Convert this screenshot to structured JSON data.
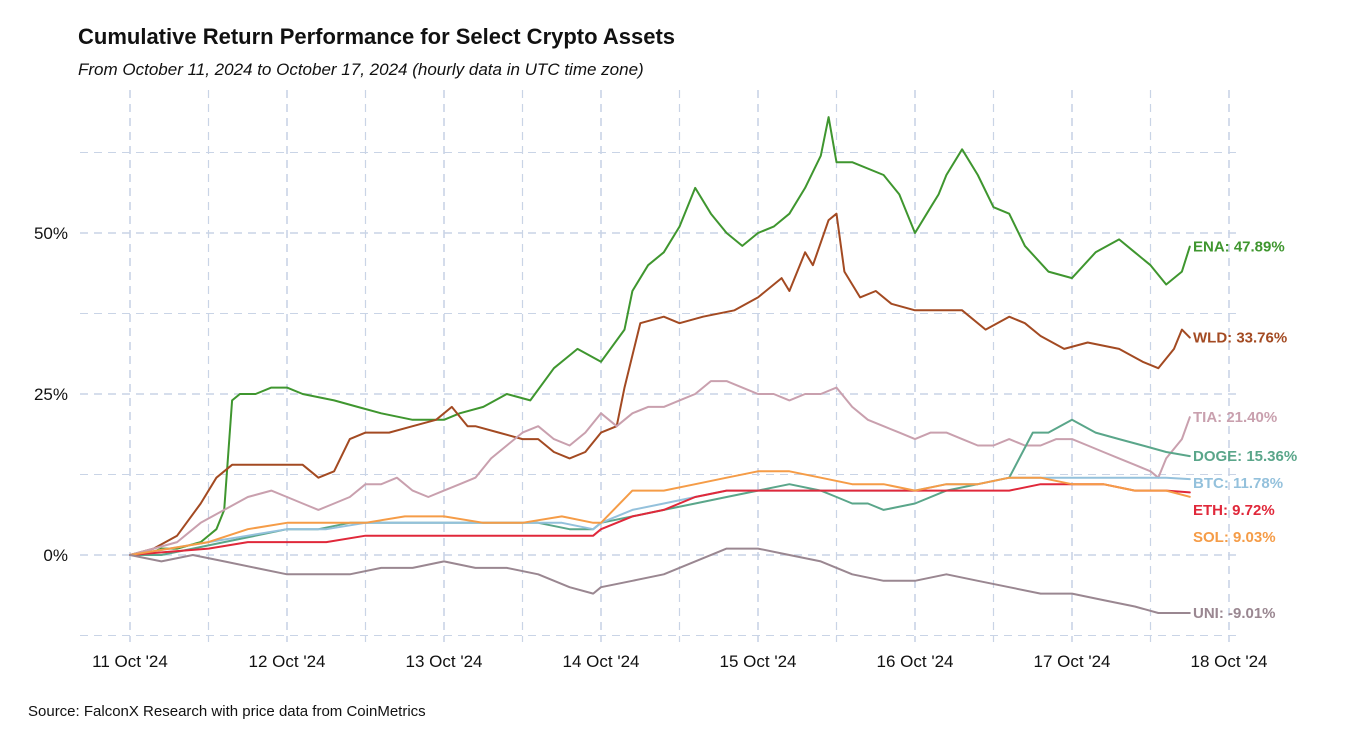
{
  "chart_data": {
    "type": "line",
    "title": "Cumulative Return Performance for Select Crypto Assets",
    "subtitle": "From October 11, 2024 to October 17, 2024 (hourly data in UTC time zone)",
    "source": "Source: FalconX Research with price data from CoinMetrics",
    "xlabel": "",
    "ylabel": "",
    "x_unit": "days since 11 Oct 2024 00:00 UTC",
    "xlim": [
      -0.27,
      7.3
    ],
    "ylim": [
      -0.14,
      0.7
    ],
    "x_ticks": [
      {
        "value": 0,
        "label": "11 Oct '24"
      },
      {
        "value": 1,
        "label": "12 Oct '24"
      },
      {
        "value": 2,
        "label": "13 Oct '24"
      },
      {
        "value": 3,
        "label": "14 Oct '24"
      },
      {
        "value": 4,
        "label": "15 Oct '24"
      },
      {
        "value": 5,
        "label": "16 Oct '24"
      },
      {
        "value": 6,
        "label": "17 Oct '24"
      },
      {
        "value": 7,
        "label": "18 Oct '24"
      }
    ],
    "y_ticks": [
      {
        "value": 0,
        "label": "0%"
      },
      {
        "value": 0.25,
        "label": "25%"
      },
      {
        "value": 0.5,
        "label": "50%"
      }
    ],
    "minor_y_gridlines": [
      -0.125,
      0.125,
      0.375,
      0.625
    ],
    "grid": true,
    "legend": "end-of-line labels",
    "series": [
      {
        "name": "ENA",
        "label": "ENA: 47.89%",
        "color": "#3f962f",
        "x": [
          0,
          0.1,
          0.2,
          0.3,
          0.45,
          0.55,
          0.6,
          0.65,
          0.7,
          0.75,
          0.8,
          0.9,
          1.0,
          1.1,
          1.3,
          1.45,
          1.6,
          1.8,
          2.0,
          2.1,
          2.25,
          2.4,
          2.55,
          2.7,
          2.8,
          2.85,
          3.0,
          3.15,
          3.2,
          3.3,
          3.4,
          3.5,
          3.6,
          3.7,
          3.8,
          3.9,
          4.0,
          4.1,
          4.2,
          4.3,
          4.4,
          4.45,
          4.5,
          4.6,
          4.8,
          4.9,
          5.0,
          5.1,
          5.15,
          5.2,
          5.3,
          5.4,
          5.5,
          5.6,
          5.7,
          5.85,
          6.0,
          6.15,
          6.3,
          6.4,
          6.5,
          6.6,
          6.7,
          6.75
        ],
        "values": [
          0,
          0.0,
          0.01,
          0.01,
          0.02,
          0.04,
          0.07,
          0.24,
          0.25,
          0.25,
          0.25,
          0.26,
          0.26,
          0.25,
          0.24,
          0.23,
          0.22,
          0.21,
          0.21,
          0.22,
          0.23,
          0.25,
          0.24,
          0.29,
          0.31,
          0.32,
          0.3,
          0.35,
          0.41,
          0.45,
          0.47,
          0.51,
          0.57,
          0.53,
          0.5,
          0.48,
          0.5,
          0.51,
          0.53,
          0.57,
          0.62,
          0.68,
          0.61,
          0.61,
          0.59,
          0.56,
          0.5,
          0.54,
          0.56,
          0.59,
          0.63,
          0.59,
          0.54,
          0.53,
          0.48,
          0.44,
          0.43,
          0.47,
          0.49,
          0.47,
          0.45,
          0.42,
          0.44,
          0.4789
        ]
      },
      {
        "name": "WLD",
        "label": "WLD: 33.76%",
        "color": "#a34a22",
        "x": [
          0,
          0.15,
          0.3,
          0.45,
          0.55,
          0.65,
          0.8,
          0.95,
          1.1,
          1.2,
          1.3,
          1.4,
          1.5,
          1.65,
          1.8,
          1.95,
          2.05,
          2.15,
          2.2,
          2.35,
          2.5,
          2.6,
          2.7,
          2.8,
          2.9,
          3.0,
          3.1,
          3.15,
          3.25,
          3.4,
          3.5,
          3.65,
          3.85,
          4.0,
          4.15,
          4.2,
          4.3,
          4.35,
          4.45,
          4.5,
          4.55,
          4.65,
          4.75,
          4.85,
          5.0,
          5.15,
          5.3,
          5.45,
          5.6,
          5.7,
          5.8,
          5.95,
          6.1,
          6.3,
          6.45,
          6.55,
          6.65,
          6.7,
          6.75
        ],
        "values": [
          0,
          0.01,
          0.03,
          0.08,
          0.12,
          0.14,
          0.14,
          0.14,
          0.14,
          0.12,
          0.13,
          0.18,
          0.19,
          0.19,
          0.2,
          0.21,
          0.23,
          0.2,
          0.2,
          0.19,
          0.18,
          0.18,
          0.16,
          0.15,
          0.16,
          0.19,
          0.2,
          0.26,
          0.36,
          0.37,
          0.36,
          0.37,
          0.38,
          0.4,
          0.43,
          0.41,
          0.47,
          0.45,
          0.52,
          0.53,
          0.44,
          0.4,
          0.41,
          0.39,
          0.38,
          0.38,
          0.38,
          0.35,
          0.37,
          0.36,
          0.34,
          0.32,
          0.33,
          0.32,
          0.3,
          0.29,
          0.32,
          0.35,
          0.3376
        ]
      },
      {
        "name": "TIA",
        "label": "TIA: 21.40%",
        "color": "#c9a0ae",
        "x": [
          0,
          0.15,
          0.3,
          0.45,
          0.6,
          0.75,
          0.9,
          1.0,
          1.1,
          1.2,
          1.3,
          1.4,
          1.5,
          1.6,
          1.7,
          1.8,
          1.9,
          2.0,
          2.1,
          2.2,
          2.3,
          2.4,
          2.5,
          2.6,
          2.7,
          2.8,
          2.9,
          3.0,
          3.1,
          3.2,
          3.3,
          3.4,
          3.5,
          3.6,
          3.7,
          3.8,
          3.9,
          4.0,
          4.1,
          4.2,
          4.3,
          4.4,
          4.5,
          4.6,
          4.7,
          4.8,
          4.9,
          5.0,
          5.1,
          5.2,
          5.3,
          5.4,
          5.5,
          5.6,
          5.7,
          5.8,
          5.9,
          6.0,
          6.1,
          6.2,
          6.3,
          6.4,
          6.5,
          6.55,
          6.6,
          6.7,
          6.75
        ],
        "values": [
          0,
          0.01,
          0.02,
          0.05,
          0.07,
          0.09,
          0.1,
          0.09,
          0.08,
          0.07,
          0.08,
          0.09,
          0.11,
          0.11,
          0.12,
          0.1,
          0.09,
          0.1,
          0.11,
          0.12,
          0.15,
          0.17,
          0.19,
          0.2,
          0.18,
          0.17,
          0.19,
          0.22,
          0.2,
          0.22,
          0.23,
          0.23,
          0.24,
          0.25,
          0.27,
          0.27,
          0.26,
          0.25,
          0.25,
          0.24,
          0.25,
          0.25,
          0.26,
          0.23,
          0.21,
          0.2,
          0.19,
          0.18,
          0.19,
          0.19,
          0.18,
          0.17,
          0.17,
          0.18,
          0.17,
          0.17,
          0.18,
          0.18,
          0.17,
          0.16,
          0.15,
          0.14,
          0.13,
          0.12,
          0.15,
          0.18,
          0.214
        ]
      },
      {
        "name": "DOGE",
        "label": "DOGE: 15.36%",
        "color": "#5aa68a",
        "x": [
          0,
          0.2,
          0.4,
          0.6,
          0.8,
          1.0,
          1.2,
          1.4,
          1.6,
          1.8,
          2.0,
          2.2,
          2.4,
          2.6,
          2.8,
          2.95,
          3.0,
          3.2,
          3.4,
          3.6,
          3.8,
          4.0,
          4.2,
          4.4,
          4.5,
          4.6,
          4.7,
          4.8,
          5.0,
          5.2,
          5.4,
          5.6,
          5.75,
          5.85,
          6.0,
          6.15,
          6.3,
          6.45,
          6.6,
          6.75
        ],
        "values": [
          0,
          0.0,
          0.01,
          0.02,
          0.03,
          0.04,
          0.04,
          0.05,
          0.05,
          0.05,
          0.05,
          0.05,
          0.05,
          0.05,
          0.04,
          0.04,
          0.05,
          0.06,
          0.07,
          0.08,
          0.09,
          0.1,
          0.11,
          0.1,
          0.09,
          0.08,
          0.08,
          0.07,
          0.08,
          0.1,
          0.11,
          0.12,
          0.19,
          0.19,
          0.21,
          0.19,
          0.18,
          0.17,
          0.16,
          0.1536
        ]
      },
      {
        "name": "BTC",
        "label": "BTC: 11.78%",
        "color": "#94c1dc",
        "x": [
          0,
          0.25,
          0.5,
          0.75,
          1.0,
          1.25,
          1.5,
          1.75,
          2.0,
          2.25,
          2.5,
          2.75,
          2.95,
          3.0,
          3.2,
          3.4,
          3.6,
          3.8,
          4.0,
          4.2,
          4.4,
          4.6,
          4.8,
          5.0,
          5.2,
          5.4,
          5.6,
          5.8,
          6.0,
          6.2,
          6.4,
          6.6,
          6.75
        ],
        "values": [
          0,
          0.01,
          0.02,
          0.03,
          0.04,
          0.04,
          0.05,
          0.05,
          0.05,
          0.05,
          0.05,
          0.05,
          0.04,
          0.05,
          0.07,
          0.08,
          0.09,
          0.1,
          0.1,
          0.1,
          0.1,
          0.1,
          0.1,
          0.1,
          0.11,
          0.11,
          0.12,
          0.12,
          0.12,
          0.12,
          0.12,
          0.12,
          0.1178
        ]
      },
      {
        "name": "ETH",
        "label": "ETH: 9.72%",
        "color": "#e0283a",
        "x": [
          0,
          0.25,
          0.5,
          0.75,
          1.0,
          1.25,
          1.5,
          1.75,
          2.0,
          2.25,
          2.5,
          2.75,
          2.95,
          3.0,
          3.2,
          3.4,
          3.6,
          3.8,
          4.0,
          4.2,
          4.4,
          4.6,
          4.8,
          5.0,
          5.2,
          5.4,
          5.6,
          5.8,
          6.0,
          6.2,
          6.4,
          6.6,
          6.75
        ],
        "values": [
          0,
          0.005,
          0.01,
          0.02,
          0.02,
          0.02,
          0.03,
          0.03,
          0.03,
          0.03,
          0.03,
          0.03,
          0.03,
          0.04,
          0.06,
          0.07,
          0.09,
          0.1,
          0.1,
          0.1,
          0.1,
          0.1,
          0.1,
          0.1,
          0.1,
          0.1,
          0.1,
          0.11,
          0.11,
          0.11,
          0.1,
          0.1,
          0.0972
        ]
      },
      {
        "name": "SOL",
        "label": "SOL: 9.03%",
        "color": "#f59c47",
        "x": [
          0,
          0.25,
          0.5,
          0.75,
          1.0,
          1.25,
          1.5,
          1.75,
          2.0,
          2.25,
          2.5,
          2.75,
          2.95,
          3.0,
          3.2,
          3.4,
          3.6,
          3.8,
          4.0,
          4.2,
          4.4,
          4.6,
          4.8,
          5.0,
          5.2,
          5.4,
          5.6,
          5.8,
          6.0,
          6.2,
          6.4,
          6.6,
          6.75
        ],
        "values": [
          0,
          0.01,
          0.02,
          0.04,
          0.05,
          0.05,
          0.05,
          0.06,
          0.06,
          0.05,
          0.05,
          0.06,
          0.05,
          0.05,
          0.1,
          0.1,
          0.11,
          0.12,
          0.13,
          0.13,
          0.12,
          0.11,
          0.11,
          0.1,
          0.11,
          0.11,
          0.12,
          0.12,
          0.11,
          0.11,
          0.1,
          0.1,
          0.0903
        ]
      },
      {
        "name": "UNI",
        "label": "UNI: -9.01%",
        "color": "#9a8791",
        "x": [
          0,
          0.2,
          0.4,
          0.6,
          0.8,
          1.0,
          1.2,
          1.4,
          1.6,
          1.8,
          2.0,
          2.2,
          2.4,
          2.6,
          2.8,
          2.95,
          3.0,
          3.2,
          3.4,
          3.6,
          3.8,
          4.0,
          4.2,
          4.4,
          4.6,
          4.8,
          5.0,
          5.2,
          5.4,
          5.6,
          5.8,
          6.0,
          6.2,
          6.4,
          6.55,
          6.65,
          6.75
        ],
        "values": [
          0,
          -0.01,
          0.0,
          -0.01,
          -0.02,
          -0.03,
          -0.03,
          -0.03,
          -0.02,
          -0.02,
          -0.01,
          -0.02,
          -0.02,
          -0.03,
          -0.05,
          -0.06,
          -0.05,
          -0.04,
          -0.03,
          -0.01,
          0.01,
          0.01,
          0.0,
          -0.01,
          -0.03,
          -0.04,
          -0.04,
          -0.03,
          -0.04,
          -0.05,
          -0.06,
          -0.06,
          -0.07,
          -0.08,
          -0.09,
          -0.09,
          -0.0901
        ]
      }
    ]
  }
}
